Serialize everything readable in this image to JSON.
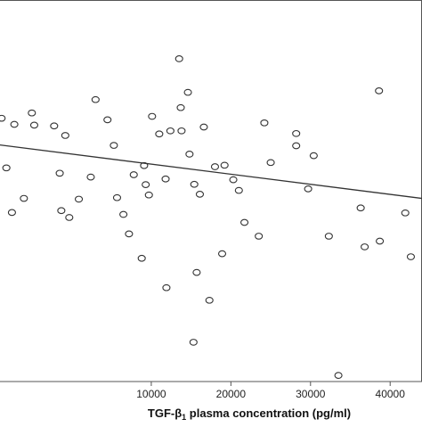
{
  "chart_data": {
    "type": "scatter",
    "title": "",
    "xlabel": {
      "main": "TGF-β",
      "subscript": "1",
      "rest": " plasma concentration (pg/ml)"
    },
    "ylabel": "",
    "xlim": [
      -9000,
      44000
    ],
    "ylim": [
      0,
      100
    ],
    "xticks": [
      10000,
      20000,
      30000,
      40000
    ],
    "xtick_labels": [
      "10000",
      "20000",
      "30000",
      "40000"
    ],
    "grid": false,
    "marker": "open-circle",
    "colors": {
      "marker_stroke": "#333333",
      "line": "#333333",
      "frame": "#555555",
      "text": "#111111"
    },
    "trendline": {
      "type": "linear",
      "from": [
        -9000,
        62.0
      ],
      "to": [
        44000,
        48.0
      ]
    },
    "points": [
      [
        -8800,
        69.0
      ],
      [
        -8200,
        56.0
      ],
      [
        -7500,
        44.3
      ],
      [
        -7200,
        67.4
      ],
      [
        -6000,
        48.0
      ],
      [
        -5000,
        70.4
      ],
      [
        -4700,
        67.2
      ],
      [
        -2200,
        67.0
      ],
      [
        -1500,
        54.6
      ],
      [
        -1300,
        44.8
      ],
      [
        -800,
        64.5
      ],
      [
        -300,
        43.0
      ],
      [
        900,
        47.8
      ],
      [
        2400,
        53.6
      ],
      [
        3000,
        73.9
      ],
      [
        4500,
        68.6
      ],
      [
        5300,
        61.9
      ],
      [
        5700,
        48.2
      ],
      [
        6500,
        43.8
      ],
      [
        7200,
        38.7
      ],
      [
        7800,
        54.2
      ],
      [
        8800,
        32.3
      ],
      [
        9100,
        56.6
      ],
      [
        9300,
        51.6
      ],
      [
        9700,
        48.9
      ],
      [
        10100,
        69.5
      ],
      [
        11000,
        64.9
      ],
      [
        11800,
        53.1
      ],
      [
        11900,
        24.6
      ],
      [
        12400,
        65.7
      ],
      [
        13500,
        84.6
      ],
      [
        13700,
        71.8
      ],
      [
        13800,
        65.7
      ],
      [
        14600,
        75.8
      ],
      [
        14800,
        59.6
      ],
      [
        15400,
        51.7
      ],
      [
        15700,
        28.6
      ],
      [
        15300,
        10.3
      ],
      [
        16100,
        49.1
      ],
      [
        16600,
        66.7
      ],
      [
        17300,
        21.3
      ],
      [
        18000,
        56.3
      ],
      [
        18900,
        33.5
      ],
      [
        19200,
        56.7
      ],
      [
        20300,
        52.9
      ],
      [
        21000,
        50.1
      ],
      [
        21700,
        41.7
      ],
      [
        23500,
        38.1
      ],
      [
        24200,
        67.8
      ],
      [
        25000,
        57.4
      ],
      [
        28200,
        65.0
      ],
      [
        28200,
        61.8
      ],
      [
        29700,
        50.5
      ],
      [
        30400,
        59.2
      ],
      [
        32300,
        38.1
      ],
      [
        33500,
        1.6
      ],
      [
        36300,
        45.5
      ],
      [
        36800,
        35.3
      ],
      [
        38600,
        76.2
      ],
      [
        38700,
        36.8
      ],
      [
        41900,
        44.2
      ],
      [
        42600,
        32.7
      ]
    ]
  }
}
